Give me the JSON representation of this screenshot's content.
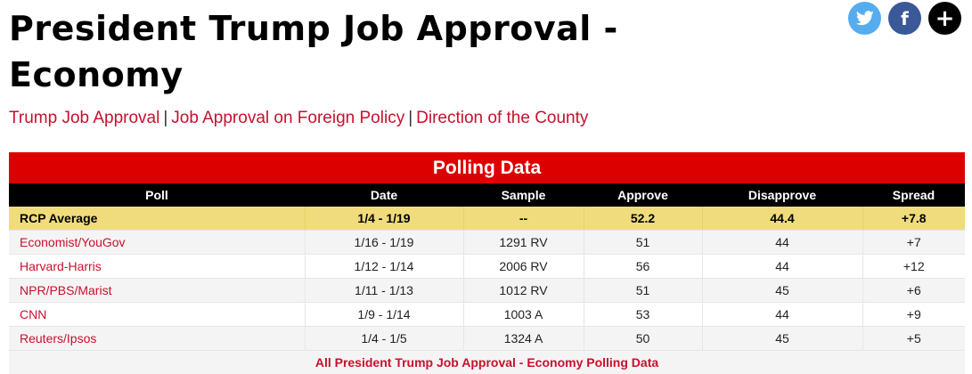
{
  "page": {
    "title": "President Trump Job Approval - Economy"
  },
  "social": {
    "twitter_icon": "twitter-icon",
    "facebook_icon": "facebook-icon",
    "facebook_glyph": "f",
    "plus_icon": "plus-icon",
    "plus_glyph": "+"
  },
  "related_links": [
    "Trump Job Approval",
    "Job Approval on Foreign Policy",
    "Direction of the County"
  ],
  "separator": "|",
  "table": {
    "title": "Polling Data",
    "columns": [
      "Poll",
      "Date",
      "Sample",
      "Approve",
      "Disapprove",
      "Spread"
    ],
    "average": {
      "poll": "RCP Average",
      "date": "1/4 - 1/19",
      "sample": "--",
      "approve": "52.2",
      "disapprove": "44.4",
      "spread": "+7.8"
    },
    "rows": [
      {
        "poll": "Economist/YouGov",
        "date": "1/16 - 1/19",
        "sample": "1291 RV",
        "approve": "51",
        "disapprove": "44",
        "spread": "+7"
      },
      {
        "poll": "Harvard-Harris",
        "date": "1/12 - 1/14",
        "sample": "2006 RV",
        "approve": "56",
        "disapprove": "44",
        "spread": "+12"
      },
      {
        "poll": "NPR/PBS/Marist",
        "date": "1/11 - 1/13",
        "sample": "1012 RV",
        "approve": "51",
        "disapprove": "45",
        "spread": "+6"
      },
      {
        "poll": "CNN",
        "date": "1/9 - 1/14",
        "sample": "1003 A",
        "approve": "53",
        "disapprove": "44",
        "spread": "+9"
      },
      {
        "poll": "Reuters/Ipsos",
        "date": "1/4 - 1/5",
        "sample": "1324 A",
        "approve": "50",
        "disapprove": "45",
        "spread": "+5"
      }
    ],
    "footer_link": "All President Trump Job Approval - Economy Polling Data"
  },
  "colors": {
    "brand_red": "#dd0000",
    "link_red": "#c8102e",
    "average_row": "#f0dc7c",
    "header_black": "#000000"
  }
}
